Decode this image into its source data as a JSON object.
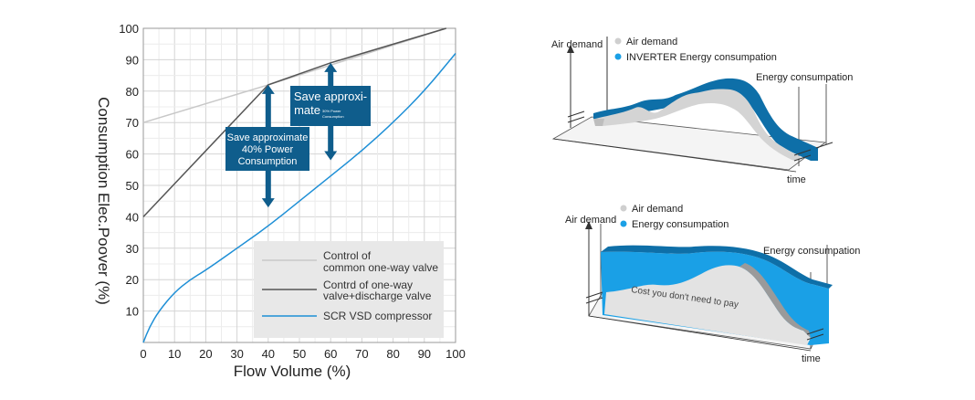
{
  "chart_data": [
    {
      "type": "line",
      "xlabel": "Flow Volume (%)",
      "ylabel": "Consumption Elec.Poover  (%)",
      "xlim": [
        0,
        100
      ],
      "ylim": [
        0,
        100
      ],
      "xticks": [
        "0",
        "10",
        "20",
        "30",
        "40",
        "50",
        "60",
        "70",
        "80",
        "90",
        "100"
      ],
      "yticks": [
        "10",
        "20",
        "30",
        "40",
        "50",
        "60",
        "70",
        "80",
        "90",
        "100"
      ],
      "grid": true,
      "legend_position": "bottom-right",
      "series": [
        {
          "name": "Control of\ncommon one-way valve",
          "color": "#c8c8c8",
          "x": [
            0,
            40,
            97
          ],
          "y": [
            70,
            82,
            100
          ]
        },
        {
          "name": "Contrd of one-way\nvalve+discharge valve",
          "color": "#555555",
          "x": [
            0,
            40,
            60,
            97
          ],
          "y": [
            40,
            82,
            89,
            100
          ]
        },
        {
          "name": "SCR VSD compressor",
          "color": "#1e8fd6",
          "x": [
            0,
            2,
            5,
            10,
            15,
            20,
            30,
            40,
            50,
            60,
            70,
            80,
            90,
            100
          ],
          "y": [
            0,
            5,
            10,
            16,
            20,
            23,
            30,
            37,
            45,
            53,
            61,
            70,
            80,
            92
          ]
        }
      ],
      "legend_lines": [
        [
          "Control of",
          "common one-way valve"
        ],
        [
          "Contrd of one-way",
          "valve+discharge valve"
        ],
        [
          "SCR VSD compressor"
        ]
      ],
      "annotations": [
        {
          "lines": [
            "Save approximate",
            "40% Power",
            "Consumption"
          ],
          "x": 40,
          "y_top": 82,
          "y_bottom": 43
        },
        {
          "lines": [
            "Save approxi-",
            "mate"
          ],
          "small": [
            "30% Power",
            "Consumption"
          ],
          "x": 60,
          "y_top": 89,
          "y_bottom": 58
        }
      ]
    },
    {
      "type": "area",
      "labels": {
        "y_axis": "Air demand",
        "x_axis": "time",
        "right": "Energy consumpation"
      },
      "legend": [
        "Air demand",
        "INVERTER Energy consumpation"
      ],
      "colors": {
        "air": "#cfcfcf",
        "energy": "#0e6fa8"
      }
    },
    {
      "type": "area",
      "labels": {
        "y_axis": "Air demand",
        "x_axis": "time",
        "right": "Energy consumpation",
        "inner": "Cost you don't need to pay"
      },
      "legend": [
        "Air demand",
        "Energy consumpation"
      ],
      "colors": {
        "air": "#cfcfcf",
        "energy": "#1aa0e6"
      }
    }
  ]
}
